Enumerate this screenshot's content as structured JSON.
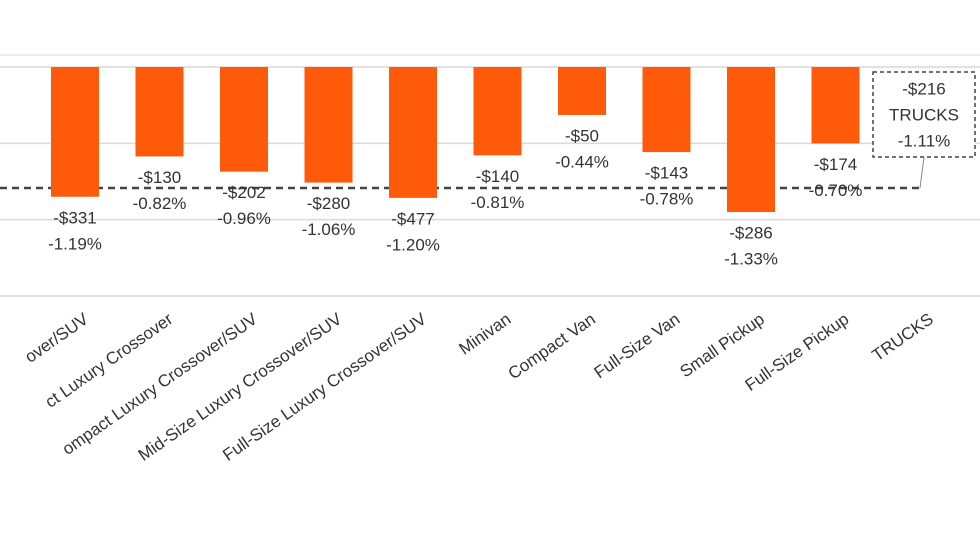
{
  "chart_data": {
    "type": "bar",
    "categories": [
      "over/SUV",
      "ct Luxury Crossover",
      "ompact Luxury Crossover/SUV",
      "Mid-Size Luxury Crossover/SUV",
      "Full-Size Luxury Crossover/SUV",
      "Minivan",
      "Compact Van",
      "Full-Size Van",
      "Small Pickup",
      "Full-Size Pickup",
      "TRUCKS"
    ],
    "values": [
      -1.19,
      -0.82,
      -0.96,
      -1.06,
      -1.2,
      -0.81,
      -0.44,
      -0.78,
      -1.33,
      -0.7,
      null
    ],
    "value_labels": [
      "-1.19%",
      "-0.82%",
      "-0.96%",
      "-1.06%",
      "-1.20%",
      "-0.81%",
      "-0.44%",
      "-0.78%",
      "-1.33%",
      "-0.70%",
      null
    ],
    "dollars": {
      "values": [
        -331,
        -130,
        -202,
        -280,
        -477,
        -140,
        -50,
        -143,
        -286,
        -174,
        null
      ],
      "value_labels": [
        "-$331",
        "-$130",
        "-$202",
        "-$280",
        "-$477",
        "-$140",
        "-$50",
        "-$143",
        "-$286",
        "-$174",
        null
      ]
    },
    "average": {
      "name": "TRUCKS",
      "value": -1.11,
      "label": "-1.11%",
      "dollar_value": -216,
      "dollar_label": "-$216"
    },
    "color": "#ff5a0a",
    "ylim": [
      -2.1,
      0
    ],
    "yticks": [
      0,
      -0.7,
      -1.4,
      -2.1
    ],
    "grid": true
  }
}
